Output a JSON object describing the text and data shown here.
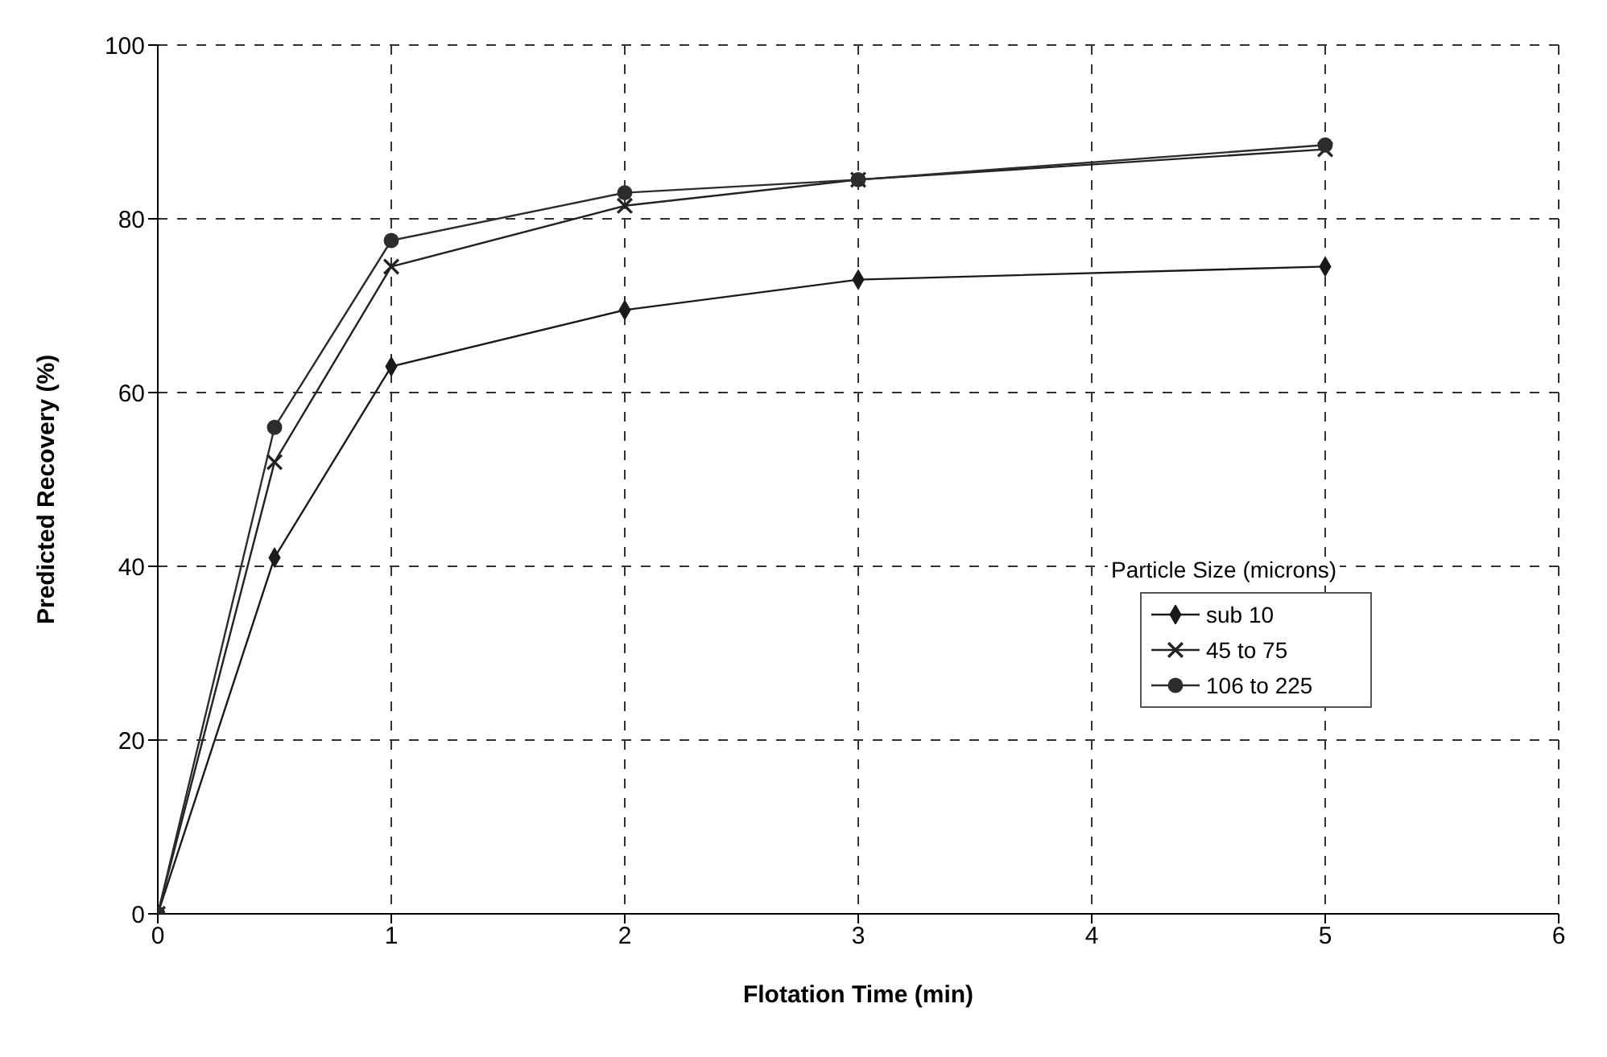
{
  "chart_data": {
    "type": "line",
    "xlabel": "Flotation Time (min)",
    "ylabel": "Predicted Recovery (%)",
    "legend_title": "Particle Size (microns)",
    "x": [
      0,
      0.5,
      1,
      2,
      3,
      5
    ],
    "series": [
      {
        "name": "sub 10",
        "color": "#1a1a1a",
        "marker": "diamond",
        "values": [
          0,
          41,
          63,
          69.5,
          73,
          74.5
        ]
      },
      {
        "name": "45 to 75",
        "color": "#222222",
        "marker": "cross",
        "values": [
          0,
          52,
          74.5,
          81.5,
          84.5,
          88
        ]
      },
      {
        "name": "106 to 225",
        "color": "#2c2c2c",
        "marker": "circle",
        "values": [
          0,
          56,
          77.5,
          83,
          84.5,
          88.5
        ]
      }
    ],
    "xlim": [
      0,
      6
    ],
    "xticks": [
      0,
      1,
      2,
      3,
      4,
      5,
      6
    ],
    "ylim": [
      0,
      100
    ],
    "yticks": [
      0,
      20,
      40,
      60,
      80,
      100
    ],
    "grid": true,
    "legend": "right"
  }
}
